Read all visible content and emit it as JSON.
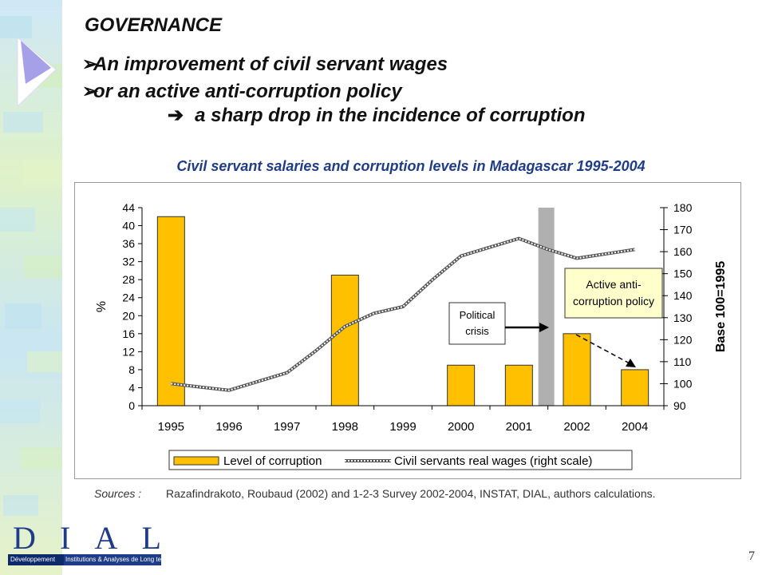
{
  "slide": {
    "heading": "GOVERNANCE",
    "bullets": [
      "An improvement of civil servant wages",
      "or an active anti-corruption policy"
    ],
    "conclusion": "a sharp drop in the incidence of corruption",
    "sources_label": "Sources :",
    "sources_text": "Razafindrakoto, Roubaud (2002) and 1-2-3 Survey 2002-2004, INSTAT, DIAL, authors calculations.",
    "page_number": "7",
    "logo": {
      "letters": [
        "D",
        "I",
        "A",
        "L"
      ],
      "tag_left": "Développement",
      "tag_right": "Institutions & Analyses de Long terme"
    }
  },
  "chart_data": {
    "type": "bar",
    "title": "Civil servant salaries and corruption levels in Madagascar 1995-2004",
    "categories": [
      "1995",
      "1996",
      "1997",
      "1998",
      "1999",
      "2000",
      "2001",
      "2002",
      "2004"
    ],
    "ylabel_left": "%",
    "ylabel_right": "Base 100=1995",
    "ylim_left": [
      0,
      44
    ],
    "yticks_left": [
      0,
      4,
      8,
      12,
      16,
      20,
      24,
      28,
      32,
      36,
      40,
      44
    ],
    "ylim_right": [
      90,
      180
    ],
    "yticks_right": [
      90,
      100,
      110,
      120,
      130,
      140,
      150,
      160,
      170,
      180
    ],
    "grid": false,
    "legend_position": "bottom",
    "series": [
      {
        "name": "Level of corruption",
        "kind": "bar",
        "axis": "left",
        "color": "#ffc000",
        "values": [
          42,
          null,
          null,
          29,
          null,
          9,
          9,
          16,
          8
        ]
      },
      {
        "name": "Civil servants real wages (right scale)",
        "kind": "line",
        "axis": "right",
        "color": "#808080",
        "x": [
          0,
          0.5,
          1,
          1.5,
          2,
          2.5,
          3,
          3.5,
          4,
          4.5,
          5,
          5.5,
          6,
          6.5,
          7,
          7.5,
          8
        ],
        "values": [
          100,
          98.5,
          97,
          101,
          105,
          115,
          126,
          132,
          135,
          147,
          158,
          162,
          166,
          161,
          157,
          159,
          161
        ]
      }
    ],
    "annotations": [
      {
        "text": "Political crisis",
        "style": "box-with-arrow"
      },
      {
        "text": "Active anti-corruption policy",
        "style": "highlight-box"
      }
    ],
    "color_crisis_band": "#b0b0b0",
    "color_policy_box": "#ffffcc"
  }
}
